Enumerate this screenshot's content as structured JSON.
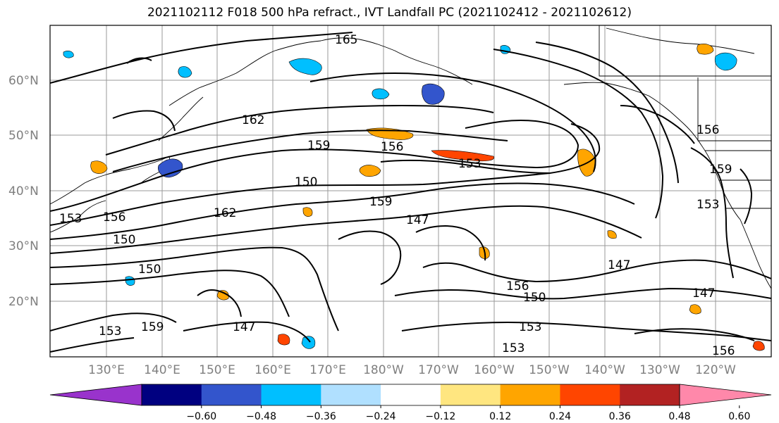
{
  "title": "2021102112 F018 500 hPa refract., IVT Landfall PC (2021102412 - 2021102612)",
  "lat_labels": [
    "60°N",
    "50°N",
    "40°N",
    "30°N",
    "20°N"
  ],
  "lon_labels": [
    "130°E",
    "140°E",
    "150°E",
    "160°E",
    "170°E",
    "180°W",
    "170°W",
    "160°W",
    "150°W",
    "140°W",
    "130°W",
    "120°W"
  ],
  "colorbar": {
    "colors": [
      "#9933cc",
      "#000080",
      "#3355cc",
      "#00bfff",
      "#b0e0ff",
      "#ffffff",
      "#ffe680",
      "#ffa500",
      "#ff4500",
      "#b22222",
      "#ff88aa"
    ],
    "tick_labels": [
      "−0.60",
      "−0.48",
      "−0.36",
      "−0.24",
      "−0.12",
      "0.12",
      "0.24",
      "0.36",
      "0.48",
      "0.60"
    ]
  },
  "contour_labels": [
    "165",
    "162",
    "159",
    "156",
    "153",
    "150",
    "147",
    "162",
    "159",
    "156",
    "153",
    "153",
    "150",
    "150",
    "147",
    "156",
    "159",
    "153",
    "147",
    "156",
    "159",
    "153",
    "147",
    "150",
    "156",
    "153"
  ],
  "line_color": "#000000",
  "grid_color": "#999999"
}
